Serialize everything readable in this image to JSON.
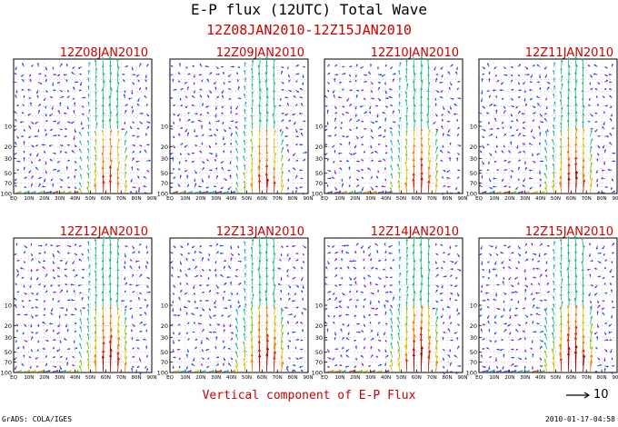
{
  "title": "E-P flux (12UTC) Total Wave",
  "date_range": "12Z08JAN2010-12Z15JAN2010",
  "caption": "Vertical component of E-P Flux",
  "reference_vector": {
    "label": "10"
  },
  "footer": {
    "left": "GrADS: COLA/IGES",
    "right": "2010-01-17-04:58"
  },
  "colors": {
    "title": "#000000",
    "panel_title": "#cc0000",
    "frame": "#000000",
    "grid": "#c8a0d0",
    "arrows": [
      "#6a22d8",
      "#2040ff",
      "#1aa8d0",
      "#20c080",
      "#80c818",
      "#e0c000",
      "#f08000",
      "#e02000",
      "#b00000"
    ]
  },
  "chart_data": [
    {
      "type": "vector",
      "title": "12Z08JAN2010",
      "x_ticks": [
        "EQ",
        "10N",
        "20N",
        "30N",
        "40N",
        "50N",
        "60N",
        "70N",
        "80N",
        "90N"
      ],
      "y_ticks": [
        "10",
        "20",
        "30",
        "50",
        "70",
        "100"
      ],
      "xlim": [
        0,
        90
      ],
      "ylim": [
        100,
        1
      ],
      "y_scale": "log",
      "grid": true
    },
    {
      "type": "vector",
      "title": "12Z09JAN2010",
      "x_ticks": [
        "EQ",
        "10N",
        "20N",
        "30N",
        "40N",
        "50N",
        "60N",
        "70N",
        "80N",
        "90N"
      ],
      "y_ticks": [
        "10",
        "20",
        "30",
        "50",
        "70",
        "100"
      ],
      "xlim": [
        0,
        90
      ],
      "ylim": [
        100,
        1
      ],
      "y_scale": "log",
      "grid": true
    },
    {
      "type": "vector",
      "title": "12Z10JAN2010",
      "x_ticks": [
        "EQ",
        "10N",
        "20N",
        "30N",
        "40N",
        "50N",
        "60N",
        "70N",
        "80N",
        "90N"
      ],
      "y_ticks": [
        "10",
        "20",
        "30",
        "50",
        "70",
        "100"
      ],
      "xlim": [
        0,
        90
      ],
      "ylim": [
        100,
        1
      ],
      "y_scale": "log",
      "grid": true
    },
    {
      "type": "vector",
      "title": "12Z11JAN2010",
      "x_ticks": [
        "EQ",
        "10N",
        "20N",
        "30N",
        "40N",
        "50N",
        "60N",
        "70N",
        "80N",
        "90N"
      ],
      "y_ticks": [
        "10",
        "20",
        "30",
        "50",
        "70",
        "100"
      ],
      "xlim": [
        0,
        90
      ],
      "ylim": [
        100,
        1
      ],
      "y_scale": "log",
      "grid": true
    },
    {
      "type": "vector",
      "title": "12Z12JAN2010",
      "x_ticks": [
        "EQ",
        "10N",
        "20N",
        "30N",
        "40N",
        "50N",
        "60N",
        "70N",
        "80N",
        "90N"
      ],
      "y_ticks": [
        "10",
        "20",
        "30",
        "50",
        "70",
        "100"
      ],
      "xlim": [
        0,
        90
      ],
      "ylim": [
        100,
        1
      ],
      "y_scale": "log",
      "grid": true
    },
    {
      "type": "vector",
      "title": "12Z13JAN2010",
      "x_ticks": [
        "EQ",
        "10N",
        "20N",
        "30N",
        "40N",
        "50N",
        "60N",
        "70N",
        "80N",
        "90N"
      ],
      "y_ticks": [
        "10",
        "20",
        "30",
        "50",
        "70",
        "100"
      ],
      "xlim": [
        0,
        90
      ],
      "ylim": [
        100,
        1
      ],
      "y_scale": "log",
      "grid": true
    },
    {
      "type": "vector",
      "title": "12Z14JAN2010",
      "x_ticks": [
        "EQ",
        "10N",
        "20N",
        "30N",
        "40N",
        "50N",
        "60N",
        "70N",
        "80N",
        "90N"
      ],
      "y_ticks": [
        "10",
        "20",
        "30",
        "50",
        "70",
        "100"
      ],
      "xlim": [
        0,
        90
      ],
      "ylim": [
        100,
        1
      ],
      "y_scale": "log",
      "grid": true
    },
    {
      "type": "vector",
      "title": "12Z15JAN2010",
      "x_ticks": [
        "EQ",
        "10N",
        "20N",
        "30N",
        "40N",
        "50N",
        "60N",
        "70N",
        "80N",
        "90N"
      ],
      "y_ticks": [
        "10",
        "20",
        "30",
        "50",
        "70",
        "100"
      ],
      "xlim": [
        0,
        90
      ],
      "ylim": [
        100,
        1
      ],
      "y_scale": "log",
      "grid": true
    }
  ]
}
